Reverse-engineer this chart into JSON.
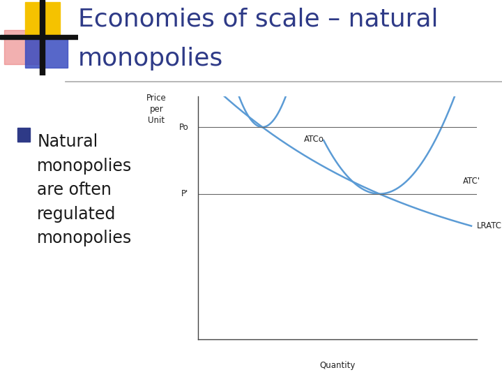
{
  "title_line1": "Economies of scale – natural",
  "title_line2": "monopolies",
  "title_color": "#2E3A87",
  "title_fontsize": 26,
  "bullet_color": "#1a1a1a",
  "bullet_fontsize": 17,
  "bullet_marker_color": "#2E3A87",
  "curve_color": "#5B9BD5",
  "background_color": "#FFFFFF",
  "xlabel": "Quantity",
  "Po_label": "Po",
  "Pprime_label": "P'",
  "ATCo_label": "ATCo",
  "ATCprime_label": "ATC'",
  "LRATC_label": "LRATC",
  "logo_yellow": "#F5C200",
  "logo_red": "#E87070",
  "logo_blue_rect": "#3A4CC0",
  "separator_color": "#AAAAAA"
}
